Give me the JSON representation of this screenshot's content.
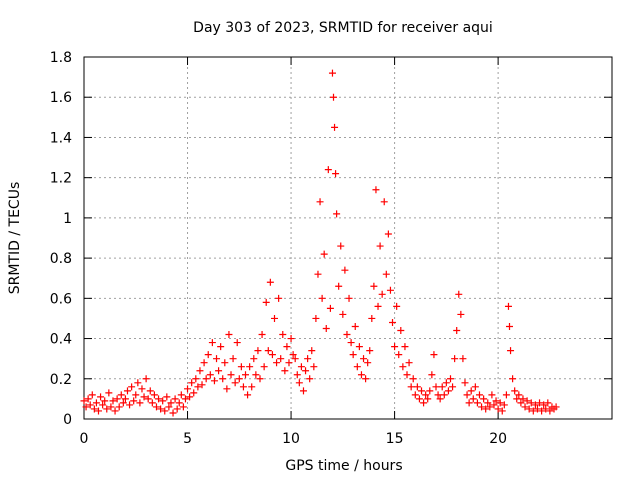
{
  "chart_data": {
    "type": "scatter",
    "title": "Day 303 of 2023, SRMTID for receiver aqui",
    "xlabel": "GPS time / hours",
    "ylabel": "SRMTID / TECUs",
    "xlim": [
      0,
      25.5
    ],
    "ylim": [
      0,
      1.8
    ],
    "xticks": [
      0,
      5,
      10,
      15,
      20
    ],
    "xtick_labels": [
      "0",
      "5",
      "10",
      "15",
      "20"
    ],
    "yticks": [
      0,
      0.2,
      0.4,
      0.6,
      0.8,
      1,
      1.2,
      1.4,
      1.6,
      1.8
    ],
    "ytick_labels": [
      "0",
      "0.2",
      "0.4",
      "0.6",
      "0.8",
      "1",
      "1.2",
      "1.4",
      "1.6",
      "1.8"
    ],
    "grid": true,
    "marker": "+",
    "color": "#ff0000",
    "series": [
      {
        "name": "aqui",
        "points": [
          [
            0.0,
            0.09
          ],
          [
            0.1,
            0.06
          ],
          [
            0.2,
            0.1
          ],
          [
            0.3,
            0.07
          ],
          [
            0.4,
            0.12
          ],
          [
            0.5,
            0.05
          ],
          [
            0.6,
            0.08
          ],
          [
            0.7,
            0.04
          ],
          [
            0.8,
            0.11
          ],
          [
            0.9,
            0.07
          ],
          [
            1.0,
            0.09
          ],
          [
            1.1,
            0.05
          ],
          [
            1.2,
            0.13
          ],
          [
            1.3,
            0.06
          ],
          [
            1.4,
            0.09
          ],
          [
            1.5,
            0.04
          ],
          [
            1.6,
            0.1
          ],
          [
            1.7,
            0.06
          ],
          [
            1.8,
            0.12
          ],
          [
            1.9,
            0.08
          ],
          [
            2.0,
            0.1
          ],
          [
            2.1,
            0.14
          ],
          [
            2.2,
            0.07
          ],
          [
            2.3,
            0.16
          ],
          [
            2.4,
            0.09
          ],
          [
            2.5,
            0.12
          ],
          [
            2.6,
            0.18
          ],
          [
            2.7,
            0.08
          ],
          [
            2.8,
            0.15
          ],
          [
            2.9,
            0.11
          ],
          [
            3.0,
            0.2
          ],
          [
            3.1,
            0.1
          ],
          [
            3.2,
            0.14
          ],
          [
            3.3,
            0.08
          ],
          [
            3.4,
            0.12
          ],
          [
            3.5,
            0.06
          ],
          [
            3.6,
            0.1
          ],
          [
            3.7,
            0.05
          ],
          [
            3.8,
            0.09
          ],
          [
            3.9,
            0.04
          ],
          [
            4.0,
            0.11
          ],
          [
            4.1,
            0.06
          ],
          [
            4.2,
            0.08
          ],
          [
            4.3,
            0.03
          ],
          [
            4.4,
            0.1
          ],
          [
            4.5,
            0.05
          ],
          [
            4.6,
            0.08
          ],
          [
            4.7,
            0.12
          ],
          [
            4.8,
            0.06
          ],
          [
            4.9,
            0.1
          ],
          [
            5.0,
            0.15
          ],
          [
            5.1,
            0.11
          ],
          [
            5.2,
            0.18
          ],
          [
            5.3,
            0.13
          ],
          [
            5.4,
            0.2
          ],
          [
            5.5,
            0.16
          ],
          [
            5.6,
            0.24
          ],
          [
            5.7,
            0.17
          ],
          [
            5.8,
            0.28
          ],
          [
            5.9,
            0.2
          ],
          [
            6.0,
            0.32
          ],
          [
            6.1,
            0.22
          ],
          [
            6.2,
            0.38
          ],
          [
            6.3,
            0.19
          ],
          [
            6.4,
            0.3
          ],
          [
            6.5,
            0.24
          ],
          [
            6.6,
            0.36
          ],
          [
            6.7,
            0.2
          ],
          [
            6.8,
            0.28
          ],
          [
            6.9,
            0.15
          ],
          [
            7.0,
            0.42
          ],
          [
            7.1,
            0.22
          ],
          [
            7.2,
            0.3
          ],
          [
            7.3,
            0.18
          ],
          [
            7.4,
            0.38
          ],
          [
            7.5,
            0.2
          ],
          [
            7.6,
            0.26
          ],
          [
            7.7,
            0.16
          ],
          [
            7.8,
            0.22
          ],
          [
            7.9,
            0.12
          ],
          [
            8.0,
            0.26
          ],
          [
            8.1,
            0.16
          ],
          [
            8.2,
            0.3
          ],
          [
            8.3,
            0.22
          ],
          [
            8.4,
            0.34
          ],
          [
            8.5,
            0.2
          ],
          [
            8.6,
            0.42
          ],
          [
            8.7,
            0.26
          ],
          [
            8.8,
            0.58
          ],
          [
            8.9,
            0.34
          ],
          [
            9.0,
            0.68
          ],
          [
            9.1,
            0.32
          ],
          [
            9.2,
            0.5
          ],
          [
            9.3,
            0.28
          ],
          [
            9.4,
            0.6
          ],
          [
            9.5,
            0.3
          ],
          [
            9.6,
            0.42
          ],
          [
            9.7,
            0.24
          ],
          [
            9.8,
            0.36
          ],
          [
            9.9,
            0.28
          ],
          [
            10.0,
            0.4
          ],
          [
            10.1,
            0.32
          ],
          [
            10.2,
            0.3
          ],
          [
            10.3,
            0.22
          ],
          [
            10.4,
            0.18
          ],
          [
            10.5,
            0.26
          ],
          [
            10.6,
            0.14
          ],
          [
            10.7,
            0.24
          ],
          [
            10.8,
            0.3
          ],
          [
            10.9,
            0.2
          ],
          [
            11.0,
            0.34
          ],
          [
            11.1,
            0.26
          ],
          [
            11.2,
            0.5
          ],
          [
            11.3,
            0.72
          ],
          [
            11.4,
            1.08
          ],
          [
            11.5,
            0.6
          ],
          [
            11.6,
            0.82
          ],
          [
            11.7,
            0.45
          ],
          [
            11.8,
            1.24
          ],
          [
            11.9,
            0.55
          ],
          [
            12.0,
            1.72
          ],
          [
            12.05,
            1.6
          ],
          [
            12.1,
            1.45
          ],
          [
            12.15,
            1.22
          ],
          [
            12.2,
            1.02
          ],
          [
            12.3,
            0.66
          ],
          [
            12.4,
            0.86
          ],
          [
            12.5,
            0.52
          ],
          [
            12.6,
            0.74
          ],
          [
            12.7,
            0.42
          ],
          [
            12.8,
            0.6
          ],
          [
            12.9,
            0.38
          ],
          [
            13.0,
            0.32
          ],
          [
            13.1,
            0.46
          ],
          [
            13.2,
            0.26
          ],
          [
            13.3,
            0.36
          ],
          [
            13.4,
            0.22
          ],
          [
            13.5,
            0.3
          ],
          [
            13.6,
            0.2
          ],
          [
            13.7,
            0.28
          ],
          [
            13.8,
            0.34
          ],
          [
            13.9,
            0.5
          ],
          [
            14.0,
            0.66
          ],
          [
            14.1,
            1.14
          ],
          [
            14.2,
            0.56
          ],
          [
            14.3,
            0.86
          ],
          [
            14.4,
            0.62
          ],
          [
            14.5,
            1.08
          ],
          [
            14.6,
            0.72
          ],
          [
            14.7,
            0.92
          ],
          [
            14.8,
            0.64
          ],
          [
            14.9,
            0.48
          ],
          [
            15.0,
            0.36
          ],
          [
            15.1,
            0.56
          ],
          [
            15.2,
            0.32
          ],
          [
            15.3,
            0.44
          ],
          [
            15.4,
            0.26
          ],
          [
            15.5,
            0.36
          ],
          [
            15.6,
            0.22
          ],
          [
            15.7,
            0.28
          ],
          [
            15.8,
            0.16
          ],
          [
            15.9,
            0.2
          ],
          [
            16.0,
            0.12
          ],
          [
            16.1,
            0.16
          ],
          [
            16.2,
            0.1
          ],
          [
            16.3,
            0.14
          ],
          [
            16.4,
            0.08
          ],
          [
            16.5,
            0.12
          ],
          [
            16.6,
            0.1
          ],
          [
            16.7,
            0.14
          ],
          [
            16.8,
            0.22
          ],
          [
            16.9,
            0.32
          ],
          [
            17.0,
            0.16
          ],
          [
            17.1,
            0.12
          ],
          [
            17.2,
            0.1
          ],
          [
            17.3,
            0.16
          ],
          [
            17.4,
            0.12
          ],
          [
            17.5,
            0.18
          ],
          [
            17.6,
            0.14
          ],
          [
            17.7,
            0.2
          ],
          [
            17.8,
            0.16
          ],
          [
            17.9,
            0.3
          ],
          [
            18.0,
            0.44
          ],
          [
            18.1,
            0.62
          ],
          [
            18.2,
            0.52
          ],
          [
            18.3,
            0.3
          ],
          [
            18.4,
            0.18
          ],
          [
            18.5,
            0.12
          ],
          [
            18.6,
            0.08
          ],
          [
            18.7,
            0.14
          ],
          [
            18.8,
            0.1
          ],
          [
            18.9,
            0.16
          ],
          [
            19.0,
            0.08
          ],
          [
            19.1,
            0.12
          ],
          [
            19.2,
            0.06
          ],
          [
            19.3,
            0.1
          ],
          [
            19.4,
            0.05
          ],
          [
            19.5,
            0.08
          ],
          [
            19.6,
            0.06
          ],
          [
            19.7,
            0.12
          ],
          [
            19.8,
            0.07
          ],
          [
            19.9,
            0.09
          ],
          [
            20.0,
            0.05
          ],
          [
            20.1,
            0.08
          ],
          [
            20.2,
            0.04
          ],
          [
            20.3,
            0.07
          ],
          [
            20.4,
            0.12
          ],
          [
            20.5,
            0.56
          ],
          [
            20.55,
            0.46
          ],
          [
            20.6,
            0.34
          ],
          [
            20.7,
            0.2
          ],
          [
            20.8,
            0.14
          ],
          [
            20.9,
            0.1
          ],
          [
            21.0,
            0.12
          ],
          [
            21.1,
            0.08
          ],
          [
            21.2,
            0.1
          ],
          [
            21.3,
            0.06
          ],
          [
            21.4,
            0.09
          ],
          [
            21.5,
            0.05
          ],
          [
            21.6,
            0.08
          ],
          [
            21.7,
            0.04
          ],
          [
            21.8,
            0.07
          ],
          [
            21.9,
            0.05
          ],
          [
            22.0,
            0.08
          ],
          [
            22.1,
            0.04
          ],
          [
            22.2,
            0.07
          ],
          [
            22.3,
            0.05
          ],
          [
            22.4,
            0.08
          ],
          [
            22.5,
            0.04
          ],
          [
            22.6,
            0.06
          ],
          [
            22.7,
            0.05
          ],
          [
            22.8,
            0.06
          ]
        ]
      }
    ]
  }
}
